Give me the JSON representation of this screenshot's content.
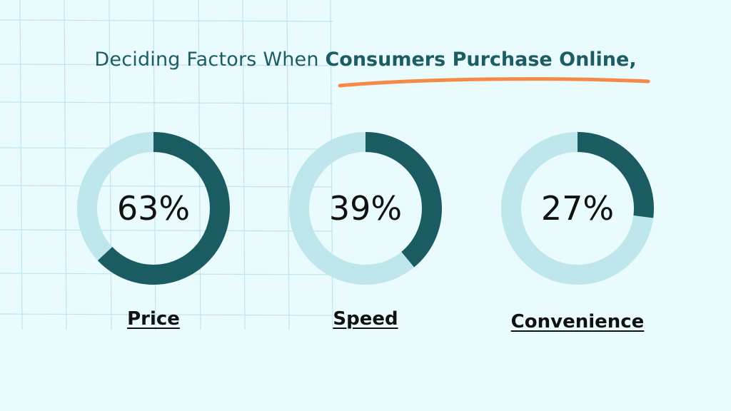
{
  "title": {
    "prefix": "Deciding Factors When ",
    "highlight": "Consumers Purchase Online,"
  },
  "colors": {
    "background": "#e9fbfd",
    "grid": "#bfe6ec",
    "filled": "#1b5c62",
    "remaining": "#bfe6ec",
    "accent_underline": "#f48a45",
    "title_text": "#1d5c63"
  },
  "chart_data": {
    "type": "donut",
    "title": "Deciding Factors When Consumers Purchase Online,",
    "categories": [
      "Price",
      "Speed",
      "Convenience"
    ],
    "values": [
      63,
      39,
      27
    ],
    "labels": [
      "63%",
      "39%",
      "27%"
    ],
    "unit": "%",
    "max": 100,
    "legend": "none",
    "grid": true
  }
}
